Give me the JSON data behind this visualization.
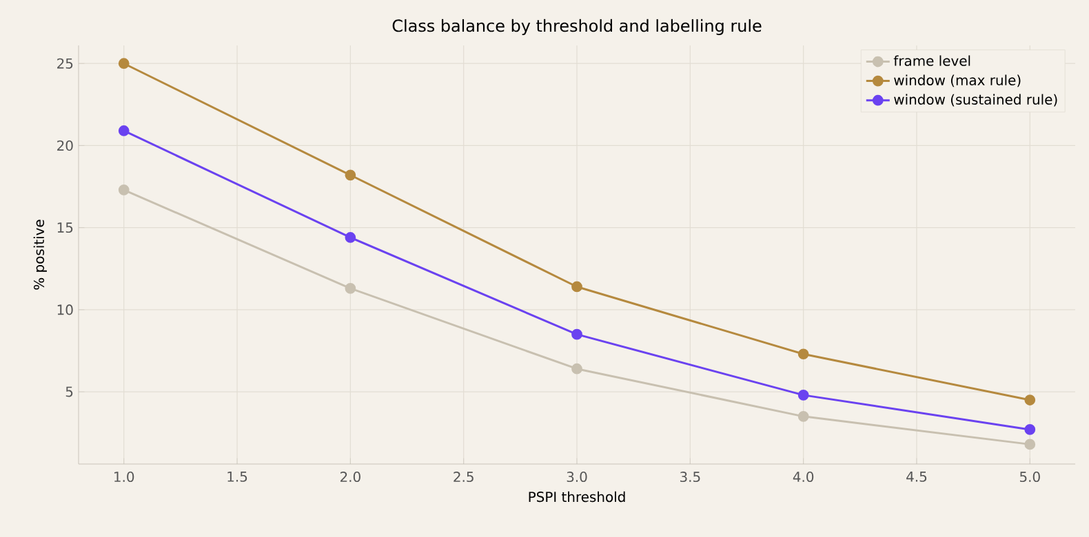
{
  "chart_data": {
    "type": "line",
    "title": "Class balance by threshold and labelling rule",
    "xlabel": "PSPI threshold",
    "ylabel": "% positive",
    "x": [
      1,
      2,
      3,
      4,
      5
    ],
    "series": [
      {
        "name": "frame level",
        "color": "#c8c0b0",
        "values": [
          17.3,
          11.3,
          6.4,
          3.5,
          1.8
        ]
      },
      {
        "name": "window (max rule)",
        "color": "#b5893e",
        "values": [
          25.0,
          18.2,
          11.4,
          7.3,
          4.5
        ]
      },
      {
        "name": "window (sustained rule)",
        "color": "#6a42f0",
        "values": [
          20.9,
          14.4,
          8.5,
          4.8,
          2.7
        ]
      }
    ],
    "xlim": [
      0.8,
      5.2
    ],
    "ylim": [
      0.6,
      26.1
    ],
    "xticks": [
      {
        "value": 1,
        "label": "1.0"
      },
      {
        "value": 1.5,
        "label": "1.5"
      },
      {
        "value": 2,
        "label": "2.0"
      },
      {
        "value": 2.5,
        "label": "2.5"
      },
      {
        "value": 3,
        "label": "3.0"
      },
      {
        "value": 3.5,
        "label": "3.5"
      },
      {
        "value": 4,
        "label": "4.0"
      },
      {
        "value": 4.5,
        "label": "4.5"
      },
      {
        "value": 5,
        "label": "5.0"
      }
    ],
    "yticks": [
      5,
      10,
      15,
      20,
      25
    ],
    "grid": true,
    "legend": "top right",
    "marker": "circle",
    "line_style": "solid"
  }
}
